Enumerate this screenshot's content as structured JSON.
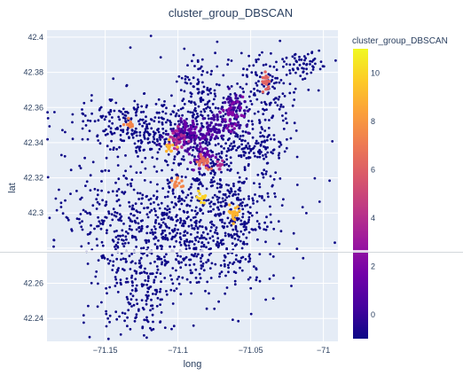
{
  "chart_data": {
    "type": "scatter",
    "title": "cluster_group_DBSCAN",
    "xlabel": "long",
    "ylabel": "lat",
    "xlim": [
      -71.19,
      -70.99
    ],
    "ylim": [
      42.227,
      42.404
    ],
    "xticks": [
      -71.15,
      -71.1,
      -71.05,
      -71
    ],
    "xtick_labels": [
      "−71.15",
      "−71.1",
      "−71.05",
      "−71"
    ],
    "yticks": [
      42.24,
      42.26,
      42.28,
      42.3,
      42.32,
      42.34,
      42.36,
      42.38,
      42.4
    ],
    "ytick_labels": [
      "42.24",
      "42.26",
      "",
      "42.3",
      "42.32",
      "42.34",
      "42.36",
      "42.38",
      "42.4"
    ],
    "grid": true,
    "background_color": "#e5ecf6",
    "colorbar": {
      "title": "cluster_group_DBSCAN",
      "range": [
        -1,
        11
      ],
      "ticks": [
        0,
        2,
        4,
        6,
        8,
        10
      ],
      "tick_labels": [
        "0",
        "2",
        "4",
        "6",
        "8",
        "10"
      ],
      "colorscale": [
        "#0d0887",
        "#46039f",
        "#7201a8",
        "#9c179e",
        "#bd3786",
        "#d8576b",
        "#ed7953",
        "#fb9f3a",
        "#fdca26",
        "#f0f921"
      ]
    },
    "series": [
      {
        "cluster": 0,
        "color": "#3d049b",
        "regions": [
          {
            "center": [
              -71.095,
              42.343
            ],
            "spread": [
              0.006,
              0.004
            ],
            "count": 60
          },
          {
            "center": [
              -71.075,
              42.348
            ],
            "spread": [
              0.01,
              0.004
            ],
            "count": 70
          },
          {
            "center": [
              -71.06,
              42.36
            ],
            "spread": [
              0.005,
              0.005
            ],
            "count": 40
          }
        ]
      },
      {
        "cluster": 1,
        "color": "#6a00a8",
        "regions": [
          {
            "center": [
              -71.09,
              42.346
            ],
            "spread": [
              0.006,
              0.003
            ],
            "count": 45
          },
          {
            "center": [
              -71.082,
              42.333
            ],
            "spread": [
              0.004,
              0.004
            ],
            "count": 30
          }
        ]
      },
      {
        "cluster": 2,
        "color": "#8405a7",
        "regions": [
          {
            "center": [
              -71.063,
              42.355
            ],
            "spread": [
              0.004,
              0.004
            ],
            "count": 30
          }
        ]
      },
      {
        "cluster": 3,
        "color": "#b12a90",
        "regions": [
          {
            "center": [
              -71.102,
              42.342
            ],
            "spread": [
              0.003,
              0.003
            ],
            "count": 28
          },
          {
            "center": [
              -71.071,
              42.327
            ],
            "spread": [
              0.0015,
              0.0015
            ],
            "count": 8
          }
        ]
      },
      {
        "cluster": 5,
        "color": "#e16462",
        "regions": [
          {
            "center": [
              -71.04,
              42.375
            ],
            "spread": [
              0.0012,
              0.0025
            ],
            "count": 18
          }
        ]
      },
      {
        "cluster": 6,
        "color": "#e66c5c",
        "regions": [
          {
            "center": [
              -71.083,
              42.329
            ],
            "spread": [
              0.0025,
              0.0025
            ],
            "count": 22
          }
        ]
      },
      {
        "cluster": 7,
        "color": "#f2844b",
        "regions": [
          {
            "center": [
              -71.133,
              42.351
            ],
            "spread": [
              0.002,
              0.0015
            ],
            "count": 14
          },
          {
            "center": [
              -71.1,
              42.317
            ],
            "spread": [
              0.002,
              0.002
            ],
            "count": 16
          }
        ]
      },
      {
        "cluster": 9,
        "color": "#fdb32f",
        "regions": [
          {
            "center": [
              -71.105,
              42.338
            ],
            "spread": [
              0.0018,
              0.0015
            ],
            "count": 12
          },
          {
            "center": [
              -71.061,
              42.3
            ],
            "spread": [
              0.002,
              0.0025
            ],
            "count": 22
          }
        ]
      },
      {
        "cluster": 10,
        "color": "#fcd225",
        "regions": [
          {
            "center": [
              -71.083,
              42.309
            ],
            "spread": [
              0.0015,
              0.0018
            ],
            "count": 12
          }
        ]
      }
    ],
    "noise_cluster": {
      "cluster": -1,
      "color": "#0d0887",
      "regions": [
        {
          "center": [
            -71.135,
            42.352
          ],
          "spread": [
            0.025,
            0.008
          ],
          "count": 170
        },
        {
          "center": [
            -71.12,
            42.345
          ],
          "spread": [
            0.01,
            0.006
          ],
          "count": 60
        },
        {
          "center": [
            -71.095,
            42.31
          ],
          "spread": [
            0.035,
            0.03
          ],
          "count": 520
        },
        {
          "center": [
            -71.07,
            42.32
          ],
          "spread": [
            0.02,
            0.03
          ],
          "count": 360
        },
        {
          "center": [
            -71.145,
            42.3
          ],
          "spread": [
            0.02,
            0.012
          ],
          "count": 120
        },
        {
          "center": [
            -71.13,
            42.27
          ],
          "spread": [
            0.018,
            0.02
          ],
          "count": 180
        },
        {
          "center": [
            -71.085,
            42.37
          ],
          "spread": [
            0.008,
            0.01
          ],
          "count": 90
        },
        {
          "center": [
            -71.04,
            42.365
          ],
          "spread": [
            0.012,
            0.012
          ],
          "count": 140
        },
        {
          "center": [
            -71.015,
            42.385
          ],
          "spread": [
            0.01,
            0.004
          ],
          "count": 60
        },
        {
          "center": [
            -71.05,
            42.337
          ],
          "spread": [
            0.012,
            0.005
          ],
          "count": 90
        },
        {
          "center": [
            -71.06,
            42.285
          ],
          "spread": [
            0.01,
            0.015
          ],
          "count": 100
        },
        {
          "center": [
            -71.1,
            42.28
          ],
          "spread": [
            0.015,
            0.012
          ],
          "count": 150
        },
        {
          "center": [
            -71.125,
            42.245
          ],
          "spread": [
            0.01,
            0.01
          ],
          "count": 60
        }
      ]
    }
  }
}
